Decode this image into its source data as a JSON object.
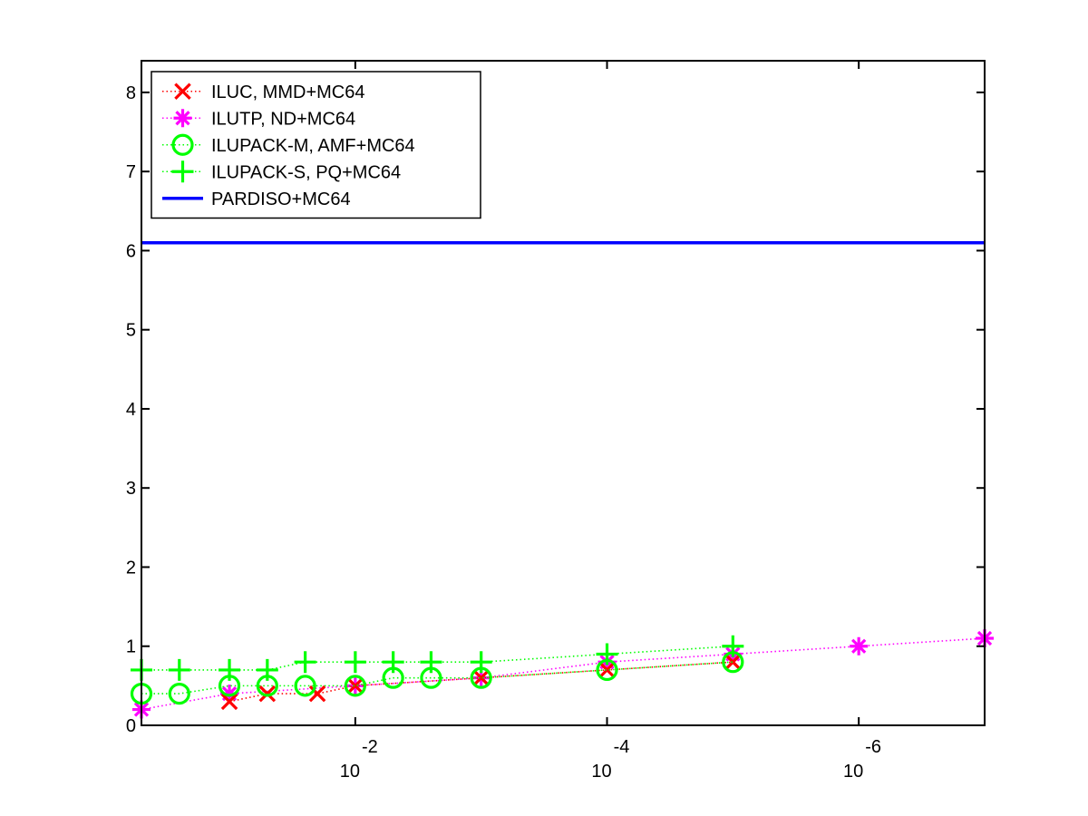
{
  "chart_data": {
    "type": "line",
    "title": "",
    "xlabel": "",
    "ylabel": "",
    "x_scale": "log",
    "x_reversed": true,
    "xlim": [
      0.5,
      1e-07
    ],
    "ylim": [
      0,
      8.4
    ],
    "grid": false,
    "legend_position": "top-left",
    "y_ticks": [
      0,
      1,
      2,
      3,
      4,
      5,
      6,
      7,
      8
    ],
    "x_ticks": [
      {
        "value": 0.01,
        "base": "10",
        "exponent": "-2"
      },
      {
        "value": 0.0001,
        "base": "10",
        "exponent": "-4"
      },
      {
        "value": 1e-06,
        "base": "10",
        "exponent": "-6"
      }
    ],
    "series": [
      {
        "name": "ILUC, MMD+MC64",
        "color": "#ff0000",
        "marker": "x",
        "line_style": "dotted",
        "points": [
          [
            0.1,
            0.3
          ],
          [
            0.05,
            0.4
          ],
          [
            0.02,
            0.4
          ],
          [
            0.01,
            0.5
          ],
          [
            0.001,
            0.6
          ],
          [
            0.0001,
            0.7
          ],
          [
            1e-05,
            0.8
          ]
        ]
      },
      {
        "name": "ILUTP,  ND+MC64",
        "color": "#ff00ff",
        "marker": "asterisk",
        "line_style": "dotted",
        "points": [
          [
            0.5,
            0.2
          ],
          [
            0.1,
            0.4
          ],
          [
            0.01,
            0.5
          ],
          [
            0.001,
            0.6
          ],
          [
            0.0001,
            0.8
          ],
          [
            1e-05,
            0.9
          ],
          [
            1e-06,
            1.0
          ],
          [
            1e-07,
            1.1
          ]
        ]
      },
      {
        "name": "ILUPACK-M, AMF+MC64",
        "color": "#00ff00",
        "marker": "circle",
        "line_style": "dotted",
        "points": [
          [
            0.5,
            0.4
          ],
          [
            0.25,
            0.4
          ],
          [
            0.1,
            0.5
          ],
          [
            0.05,
            0.5
          ],
          [
            0.025,
            0.5
          ],
          [
            0.01,
            0.5
          ],
          [
            0.005,
            0.6
          ],
          [
            0.0025,
            0.6
          ],
          [
            0.001,
            0.6
          ],
          [
            0.0001,
            0.7
          ],
          [
            1e-05,
            0.8
          ]
        ]
      },
      {
        "name": "ILUPACK-S, PQ+MC64",
        "color": "#00ff00",
        "marker": "plus",
        "line_style": "dotted",
        "points": [
          [
            0.5,
            0.7
          ],
          [
            0.25,
            0.7
          ],
          [
            0.1,
            0.7
          ],
          [
            0.05,
            0.7
          ],
          [
            0.025,
            0.8
          ],
          [
            0.01,
            0.8
          ],
          [
            0.005,
            0.8
          ],
          [
            0.0025,
            0.8
          ],
          [
            0.001,
            0.8
          ],
          [
            0.0001,
            0.9
          ],
          [
            1e-05,
            1.0
          ]
        ]
      },
      {
        "name": "PARDISO+MC64",
        "color": "#0000ff",
        "marker": "none",
        "line_style": "solid",
        "points": [
          [
            0.5,
            6.1
          ],
          [
            1e-07,
            6.1
          ]
        ]
      }
    ]
  }
}
